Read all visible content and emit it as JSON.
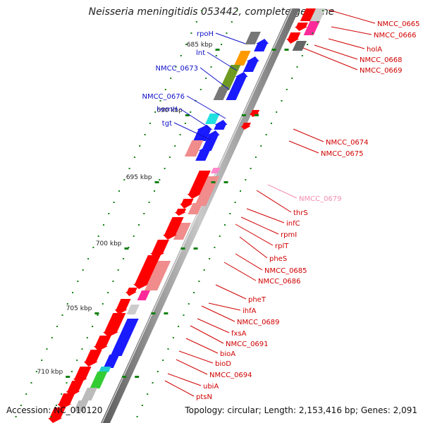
{
  "title": "Neisseria meningitidis 053442, complete genome",
  "accession": "Accession: NC_010120",
  "topology": "Topology: circular; Length: 2,153,416 bp; Genes: 2,091",
  "colors": {
    "backbone": "#8c8c8c",
    "forward_label": "#1010c8",
    "reverse_label": "#d00000",
    "faded_label": "#f58cb4",
    "tick": "#128012"
  },
  "kbp_ticks": [
    "685 kbp",
    "690 kbp",
    "695 kbp",
    "700 kbp",
    "705 kbp",
    "710 kbp"
  ],
  "forward_labels": [
    "rpoH",
    "lnt",
    "NMCC_0673",
    "NMCC_0676",
    "hemH",
    "tgt"
  ],
  "reverse_labels": [
    "NMCC_0665",
    "NMCC_0666",
    "holA",
    "NMCC_0668",
    "NMCC_0669",
    "NMCC_0674",
    "NMCC_0675",
    "NMCC_0679",
    "thrS",
    "infC",
    "rpmI",
    "rplT",
    "pheS",
    "NMCC_0685",
    "NMCC_0686",
    "pheT",
    "ihfA",
    "NMCC_0689",
    "fxsA",
    "NMCC_0691",
    "bioA",
    "bioD",
    "NMCC_0694",
    "ubiA",
    "ptsN"
  ]
}
